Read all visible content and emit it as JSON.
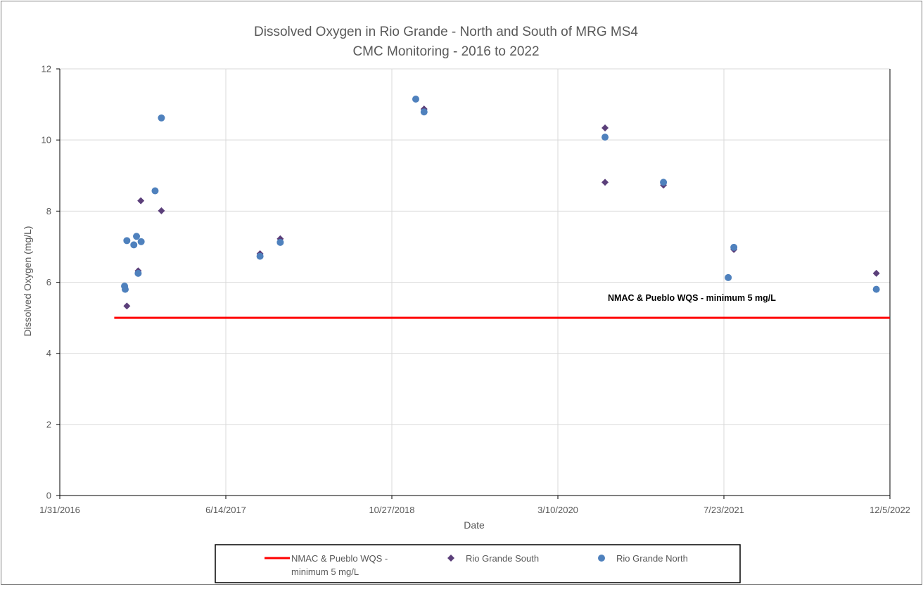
{
  "chart_data": {
    "type": "scatter",
    "title": [
      "Dissolved Oxygen in Rio Grande - North and South of MRG MS4",
      "CMC Monitoring - 2016 to 2022"
    ],
    "xlabel": "Date",
    "ylabel": "Dissolved Oxygen (mg/L)",
    "xlim": [
      "2016-01-31",
      "2022-12-05"
    ],
    "ylim": [
      0,
      12
    ],
    "x_ticks": [
      "1/31/2016",
      "6/14/2017",
      "10/27/2018",
      "3/10/2020",
      "7/23/2021",
      "12/5/2022"
    ],
    "y_ticks": [
      "0",
      "2",
      "4",
      "6",
      "8",
      "10",
      "12"
    ],
    "grid": true,
    "legend_position": "bottom",
    "annotation": "NMAC & Pueblo WQS - minimum 5 mg/L",
    "series": [
      {
        "name": "NMAC & Pueblo WQS - minimum 5 mg/L",
        "legend_lines": [
          "NMAC & Pueblo WQS -",
          "minimum 5 mg/L"
        ],
        "kind": "line",
        "color": "#ff0000",
        "points": [
          [
            "2016-07-13",
            5
          ],
          [
            "2022-12-05",
            5
          ]
        ]
      },
      {
        "name": "Rio Grande South",
        "kind": "diamond",
        "color": "#5b3f7a",
        "points": [
          [
            "2016-08-20",
            5.33
          ],
          [
            "2016-09-23",
            6.32
          ],
          [
            "2016-10-01",
            8.29
          ],
          [
            "2016-12-02",
            8.01
          ],
          [
            "2017-09-25",
            6.8
          ],
          [
            "2017-11-25",
            7.22
          ],
          [
            "2019-02-01",
            10.87
          ],
          [
            "2020-07-30",
            10.34
          ],
          [
            "2020-07-30",
            8.81
          ],
          [
            "2021-01-22",
            8.73
          ],
          [
            "2021-08-22",
            6.92
          ],
          [
            "2022-10-25",
            6.25
          ]
        ]
      },
      {
        "name": "Rio Grande North",
        "kind": "circle",
        "color": "#4f81bd",
        "points": [
          [
            "2016-08-13",
            5.89
          ],
          [
            "2016-08-15",
            5.8
          ],
          [
            "2016-08-20",
            7.17
          ],
          [
            "2016-09-10",
            7.05
          ],
          [
            "2016-09-18",
            7.29
          ],
          [
            "2016-09-23",
            6.25
          ],
          [
            "2016-10-02",
            7.14
          ],
          [
            "2016-11-13",
            8.57
          ],
          [
            "2016-12-02",
            10.62
          ],
          [
            "2017-09-25",
            6.73
          ],
          [
            "2017-11-25",
            7.12
          ],
          [
            "2019-01-07",
            11.15
          ],
          [
            "2019-02-01",
            10.79
          ],
          [
            "2020-07-30",
            10.08
          ],
          [
            "2021-01-22",
            8.81
          ],
          [
            "2021-08-05",
            6.13
          ],
          [
            "2021-08-22",
            6.98
          ],
          [
            "2022-10-25",
            5.8
          ]
        ]
      }
    ]
  }
}
